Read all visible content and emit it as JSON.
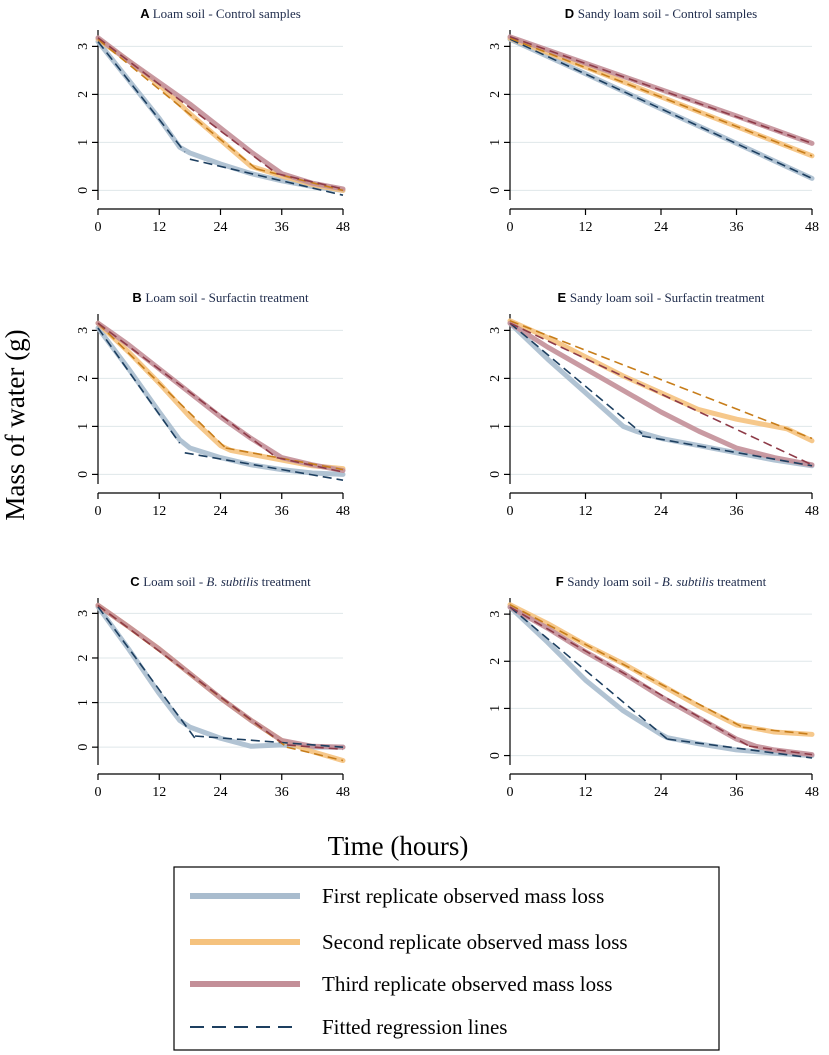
{
  "figure": {
    "ylabel": "Mass of water (g)",
    "xlabel": "Time (hours)"
  },
  "colors": {
    "rep1": "#a9bcce",
    "rep2": "#f5c27e",
    "rep3": "#c38f98",
    "fit_rep1": "#1d3f60",
    "fit_rep2": "#c77d1a",
    "fit_rep3": "#8e3b48",
    "grid": "#dfe7ea",
    "axis": "#000000",
    "title": "#1d2a4a"
  },
  "legend": {
    "items": [
      {
        "key": "rep1",
        "label": "First replicate observed mass loss",
        "style": "solid"
      },
      {
        "key": "rep2",
        "label": "Second replicate observed mass loss",
        "style": "solid"
      },
      {
        "key": "rep3",
        "label": "Third replicate observed mass loss",
        "style": "solid"
      },
      {
        "key": "fit",
        "label": "Fitted regression lines",
        "style": "dashed"
      }
    ]
  },
  "chart_data": [
    {
      "type": "line",
      "letter": "A",
      "title_pre": "Loam soil - Control samples",
      "title_italic": "",
      "title_post": "",
      "x_ticks": [
        0,
        12,
        24,
        36,
        48
      ],
      "y_ticks": [
        0,
        1,
        2,
        3
      ],
      "xlim": [
        0,
        48
      ],
      "ylim": [
        -0.2,
        3.3
      ],
      "series": [
        {
          "name": "First replicate",
          "key": "rep1",
          "x": [
            0,
            6,
            12,
            16,
            18,
            24,
            30,
            36,
            42,
            48
          ],
          "y": [
            3.1,
            2.3,
            1.5,
            0.9,
            0.78,
            0.55,
            0.35,
            0.2,
            0.08,
            0.0
          ]
        },
        {
          "name": "Second replicate",
          "key": "rep2",
          "x": [
            0,
            6,
            12,
            18,
            24,
            30,
            36,
            42,
            48
          ],
          "y": [
            3.15,
            2.7,
            2.2,
            1.6,
            1.05,
            0.5,
            0.3,
            0.12,
            0.0
          ]
        },
        {
          "name": "Third replicate",
          "key": "rep3",
          "x": [
            0,
            6,
            12,
            18,
            24,
            30,
            36,
            42,
            48
          ],
          "y": [
            3.18,
            2.7,
            2.25,
            1.8,
            1.3,
            0.8,
            0.35,
            0.15,
            0.03
          ]
        }
      ],
      "fits": [
        {
          "key": "fit_rep1",
          "segments": [
            [
              0,
              3.1,
              17,
              0.8
            ],
            [
              18,
              0.65,
              48,
              -0.1
            ]
          ]
        },
        {
          "key": "fit_rep2",
          "segments": [
            [
              0,
              3.15,
              31,
              0.45
            ],
            [
              31,
              0.45,
              48,
              0.0
            ]
          ]
        },
        {
          "key": "fit_rep3",
          "segments": [
            [
              0,
              3.18,
              35,
              0.35
            ],
            [
              35,
              0.35,
              48,
              0.03
            ]
          ]
        }
      ]
    },
    {
      "type": "line",
      "letter": "D",
      "title_pre": "Sandy loam soil - Control samples",
      "title_italic": "",
      "title_post": "",
      "x_ticks": [
        0,
        12,
        24,
        36,
        48
      ],
      "y_ticks": [
        0,
        1,
        2,
        3
      ],
      "xlim": [
        0,
        48
      ],
      "ylim": [
        -0.2,
        3.3
      ],
      "series": [
        {
          "name": "First replicate",
          "key": "rep1",
          "x": [
            0,
            12,
            24,
            36,
            48
          ],
          "y": [
            3.15,
            2.43,
            1.7,
            0.98,
            0.25
          ]
        },
        {
          "name": "Second replicate",
          "key": "rep2",
          "x": [
            0,
            12,
            24,
            36,
            48
          ],
          "y": [
            3.17,
            2.57,
            1.95,
            1.33,
            0.72
          ]
        },
        {
          "name": "Third replicate",
          "key": "rep3",
          "x": [
            0,
            12,
            24,
            36,
            48
          ],
          "y": [
            3.2,
            2.65,
            2.1,
            1.55,
            0.98
          ]
        }
      ],
      "fits": [
        {
          "key": "fit_rep1",
          "segments": [
            [
              0,
              3.15,
              48,
              0.25
            ]
          ]
        },
        {
          "key": "fit_rep2",
          "segments": [
            [
              0,
              3.17,
              48,
              0.72
            ]
          ]
        },
        {
          "key": "fit_rep3",
          "segments": [
            [
              0,
              3.2,
              48,
              0.98
            ]
          ]
        }
      ]
    },
    {
      "type": "line",
      "letter": "B",
      "title_pre": "Loam soil - Surfactin treatment",
      "title_italic": "",
      "title_post": "",
      "x_ticks": [
        0,
        12,
        24,
        36,
        48
      ],
      "y_ticks": [
        0,
        1,
        2,
        3
      ],
      "xlim": [
        0,
        48
      ],
      "ylim": [
        -0.2,
        3.3
      ],
      "series": [
        {
          "name": "First replicate",
          "key": "rep1",
          "x": [
            0,
            6,
            12,
            16,
            18,
            24,
            30,
            36,
            42,
            48
          ],
          "y": [
            3.05,
            2.2,
            1.3,
            0.72,
            0.55,
            0.35,
            0.2,
            0.1,
            0.03,
            0.0
          ]
        },
        {
          "name": "Second replicate",
          "key": "rep2",
          "x": [
            0,
            6,
            12,
            18,
            24,
            26,
            30,
            36,
            42,
            48
          ],
          "y": [
            3.15,
            2.55,
            1.9,
            1.2,
            0.6,
            0.5,
            0.42,
            0.3,
            0.18,
            0.12
          ]
        },
        {
          "name": "Third replicate",
          "key": "rep3",
          "x": [
            0,
            6,
            12,
            18,
            24,
            30,
            36,
            42,
            48
          ],
          "y": [
            3.15,
            2.7,
            2.2,
            1.7,
            1.2,
            0.75,
            0.35,
            0.2,
            0.08
          ]
        }
      ],
      "fits": [
        {
          "key": "fit_rep1",
          "segments": [
            [
              0,
              3.05,
              16,
              0.65
            ],
            [
              17,
              0.45,
              48,
              -0.12
            ]
          ]
        },
        {
          "key": "fit_rep2",
          "segments": [
            [
              0,
              3.15,
              25,
              0.55
            ],
            [
              25,
              0.55,
              48,
              0.1
            ]
          ]
        },
        {
          "key": "fit_rep3",
          "segments": [
            [
              0,
              3.15,
              35,
              0.35
            ],
            [
              35,
              0.35,
              48,
              0.05
            ]
          ]
        }
      ]
    },
    {
      "type": "line",
      "letter": "E",
      "title_pre": "Sandy loam soil - Surfactin treatment",
      "title_italic": "",
      "title_post": "",
      "x_ticks": [
        0,
        12,
        24,
        36,
        48
      ],
      "y_ticks": [
        0,
        1,
        2,
        3
      ],
      "xlim": [
        0,
        48
      ],
      "ylim": [
        -0.2,
        3.3
      ],
      "series": [
        {
          "name": "First replicate",
          "key": "rep1",
          "x": [
            0,
            6,
            12,
            18,
            20,
            24,
            30,
            36,
            42,
            48
          ],
          "y": [
            3.15,
            2.4,
            1.7,
            1.0,
            0.9,
            0.75,
            0.6,
            0.45,
            0.3,
            0.18
          ]
        },
        {
          "name": "Second replicate",
          "key": "rep2",
          "x": [
            0,
            6,
            12,
            18,
            24,
            30,
            36,
            40,
            44,
            48
          ],
          "y": [
            3.2,
            2.85,
            2.45,
            2.05,
            1.7,
            1.35,
            1.15,
            1.05,
            0.95,
            0.7
          ]
        },
        {
          "name": "Third replicate",
          "key": "rep3",
          "x": [
            0,
            6,
            12,
            18,
            24,
            30,
            36,
            42,
            48
          ],
          "y": [
            3.15,
            2.65,
            2.2,
            1.75,
            1.3,
            0.9,
            0.55,
            0.35,
            0.2
          ]
        }
      ],
      "fits": [
        {
          "key": "fit_rep1",
          "segments": [
            [
              0,
              3.15,
              21,
              0.85
            ],
            [
              21,
              0.8,
              48,
              0.18
            ]
          ]
        },
        {
          "key": "fit_rep2",
          "segments": [
            [
              0,
              3.2,
              48,
              0.75
            ]
          ]
        },
        {
          "key": "fit_rep3",
          "segments": [
            [
              0,
              3.15,
              48,
              0.2
            ]
          ]
        }
      ]
    },
    {
      "type": "line",
      "letter": "C",
      "title_pre": "Loam soil - ",
      "title_italic": "B. subtilis",
      "title_post": " treatment",
      "x_ticks": [
        0,
        12,
        24,
        36,
        48
      ],
      "y_ticks": [
        0,
        1,
        2,
        3
      ],
      "xlim": [
        0,
        48
      ],
      "ylim": [
        -0.4,
        3.3
      ],
      "series": [
        {
          "name": "First replicate",
          "key": "rep1",
          "x": [
            0,
            6,
            12,
            16,
            18,
            24,
            30,
            36,
            42,
            48
          ],
          "y": [
            3.15,
            2.2,
            1.2,
            0.6,
            0.45,
            0.2,
            0.02,
            0.05,
            0.0,
            0.0
          ]
        },
        {
          "name": "Second replicate",
          "key": "rep2",
          "x": [
            0,
            6,
            12,
            18,
            24,
            30,
            36,
            42,
            48
          ],
          "y": [
            3.18,
            2.7,
            2.2,
            1.65,
            1.1,
            0.6,
            0.15,
            -0.1,
            -0.3
          ]
        },
        {
          "name": "Third replicate",
          "key": "rep3",
          "x": [
            0,
            6,
            12,
            18,
            24,
            30,
            36,
            42,
            48
          ],
          "y": [
            3.18,
            2.7,
            2.2,
            1.65,
            1.1,
            0.6,
            0.15,
            0.02,
            0.0
          ]
        }
      ],
      "fits": [
        {
          "key": "fit_rep1",
          "segments": [
            [
              0,
              3.15,
              19,
              0.2
            ],
            [
              19,
              0.25,
              48,
              0.0
            ]
          ]
        },
        {
          "key": "fit_rep2",
          "segments": [
            [
              0,
              3.18,
              37,
              0.0
            ],
            [
              37,
              0.0,
              48,
              -0.3
            ]
          ]
        },
        {
          "key": "fit_rep3",
          "segments": [
            [
              0,
              3.18,
              36,
              0.1
            ],
            [
              37,
              0.05,
              48,
              -0.05
            ]
          ]
        }
      ]
    },
    {
      "type": "line",
      "letter": "F",
      "title_pre": "Sandy loam soil - ",
      "title_italic": "B. subtilis",
      "title_post": " treatment",
      "x_ticks": [
        0,
        12,
        24,
        36,
        48
      ],
      "y_ticks": [
        0,
        1,
        2,
        3
      ],
      "xlim": [
        0,
        48
      ],
      "ylim": [
        -0.2,
        3.3
      ],
      "series": [
        {
          "name": "First replicate",
          "key": "rep1",
          "x": [
            0,
            6,
            12,
            18,
            24,
            25,
            30,
            36,
            42,
            48
          ],
          "y": [
            3.15,
            2.4,
            1.6,
            0.95,
            0.45,
            0.38,
            0.25,
            0.12,
            0.05,
            0.0
          ]
        },
        {
          "name": "Second replicate",
          "key": "rep2",
          "x": [
            0,
            6,
            12,
            18,
            24,
            30,
            36,
            42,
            48
          ],
          "y": [
            3.2,
            2.8,
            2.35,
            1.95,
            1.5,
            1.05,
            0.65,
            0.5,
            0.45
          ]
        },
        {
          "name": "Third replicate",
          "key": "rep3",
          "x": [
            0,
            6,
            12,
            18,
            24,
            30,
            36,
            39,
            42,
            48
          ],
          "y": [
            3.15,
            2.7,
            2.2,
            1.75,
            1.25,
            0.8,
            0.35,
            0.2,
            0.12,
            0.02
          ]
        }
      ],
      "fits": [
        {
          "key": "fit_rep1",
          "segments": [
            [
              0,
              3.15,
              25,
              0.35
            ],
            [
              25,
              0.35,
              48,
              -0.05
            ]
          ]
        },
        {
          "key": "fit_rep2",
          "segments": [
            [
              0,
              3.2,
              37,
              0.6
            ],
            [
              37,
              0.6,
              48,
              0.45
            ]
          ]
        },
        {
          "key": "fit_rep3",
          "segments": [
            [
              0,
              3.15,
              38,
              0.2
            ],
            [
              38,
              0.2,
              48,
              0.02
            ]
          ]
        }
      ]
    }
  ]
}
